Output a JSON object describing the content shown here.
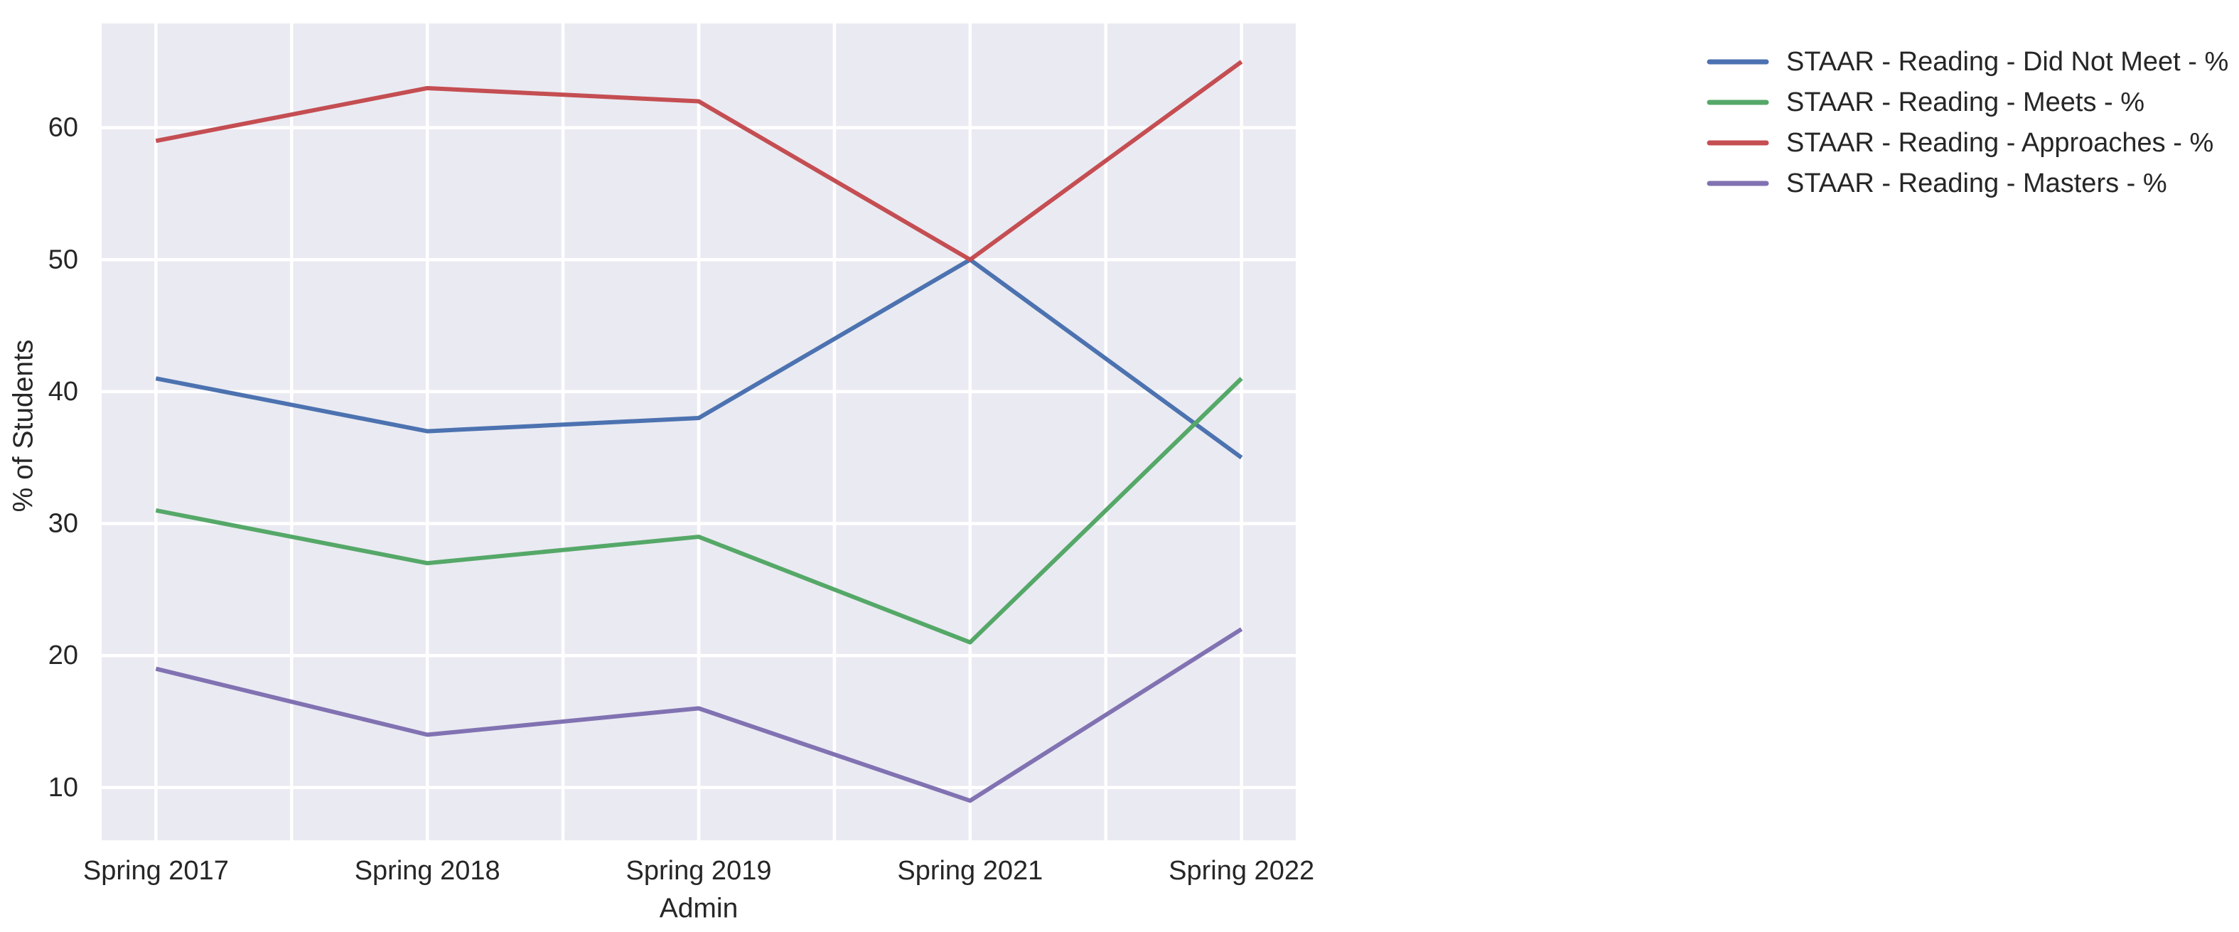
{
  "figure": {
    "background": "#ffffff",
    "plot_background": "#eaeaf2",
    "grid_color": "#ffffff",
    "text_color": "#262626"
  },
  "chart_data": {
    "type": "line",
    "title": "",
    "xlabel": "Admin",
    "ylabel": "% of Students",
    "categories": [
      "Spring 2017",
      "Spring 2018",
      "Spring 2019",
      "Spring 2021",
      "Spring 2022"
    ],
    "series": [
      {
        "key": "did-not-meet",
        "name": "STAAR - Reading - Did Not Meet - %",
        "color": "#4c72b0",
        "values": [
          41,
          37,
          38,
          50,
          35
        ]
      },
      {
        "key": "meets",
        "name": "STAAR - Reading - Meets - %",
        "color": "#55a868",
        "values": [
          31,
          27,
          29,
          21,
          41
        ]
      },
      {
        "key": "approaches",
        "name": "STAAR - Reading - Approaches - %",
        "color": "#c44e52",
        "values": [
          59,
          63,
          62,
          50,
          65
        ]
      },
      {
        "key": "masters",
        "name": "STAAR - Reading - Masters - %",
        "color": "#8172b2",
        "values": [
          19,
          14,
          16,
          9,
          22
        ]
      }
    ],
    "yticks": [
      10,
      20,
      30,
      40,
      50,
      60
    ],
    "ylim": [
      6.0,
      67.9
    ],
    "xlim": [
      -0.2,
      4.2
    ],
    "x_grid_step": 0.5,
    "grid": true,
    "legend_position": "outside-upper-right"
  }
}
